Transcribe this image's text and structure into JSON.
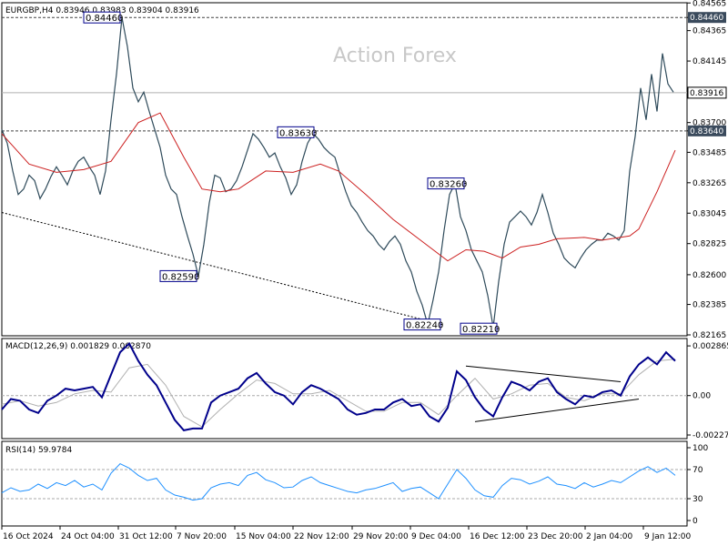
{
  "header": {
    "price_title": "EURGBP,H4  0.83946 0.83983 0.83904 0.83916",
    "macd_title": "MACD(12,26,9) 0.001829 0.002870",
    "rsi_title": "RSI(14) 59.9784",
    "watermark": "Action Forex"
  },
  "chart_data": [
    {
      "type": "line",
      "panel": "price",
      "ylim": [
        0.82165,
        0.8456
      ],
      "y_ticks": [
        "0.84565",
        "0.84460",
        "0.84365",
        "0.84145",
        "0.83916",
        "0.83700",
        "0.83640",
        "0.83485",
        "0.83265",
        "0.83045",
        "0.82825",
        "0.82600",
        "0.82385",
        "0.82165"
      ],
      "current_price": "0.83916",
      "series": [
        {
          "kind": "close",
          "x": [
            0,
            6,
            12,
            18,
            24,
            30,
            36,
            42,
            48,
            54,
            60,
            66,
            72,
            78,
            84,
            90,
            96,
            102,
            108,
            114,
            120,
            126,
            132,
            138,
            144,
            150,
            156,
            162,
            168,
            174,
            180,
            186,
            192,
            198,
            204,
            210,
            216,
            222,
            228,
            234,
            240,
            246,
            252,
            258,
            264,
            270,
            276,
            282,
            288,
            294,
            300,
            306,
            312,
            318,
            324,
            330,
            336,
            342,
            348,
            354,
            360,
            366,
            372,
            378,
            384,
            390,
            396,
            402,
            408,
            414,
            420,
            426,
            432,
            438,
            444,
            450,
            456,
            462,
            468,
            474,
            480,
            486,
            492,
            498,
            504,
            510,
            516,
            522,
            528,
            534,
            540,
            546,
            552,
            558,
            564,
            570,
            576,
            582,
            588,
            594,
            600,
            606,
            612,
            618,
            624,
            630,
            636,
            642,
            648,
            654,
            660,
            666,
            672,
            678,
            684,
            690,
            696,
            702,
            708,
            714,
            720,
            726,
            732,
            738
          ],
          "values": [
            0.8365,
            0.8355,
            0.8335,
            0.8318,
            0.8322,
            0.8332,
            0.8328,
            0.8315,
            0.8322,
            0.8331,
            0.8338,
            0.8332,
            0.8325,
            0.8335,
            0.8342,
            0.8345,
            0.8338,
            0.8332,
            0.8318,
            0.8335,
            0.8372,
            0.8405,
            0.8446,
            0.8425,
            0.8395,
            0.8385,
            0.8392,
            0.8378,
            0.8365,
            0.8352,
            0.8332,
            0.8322,
            0.8318,
            0.8302,
            0.8288,
            0.8275,
            0.8259,
            0.8282,
            0.8312,
            0.8332,
            0.833,
            0.832,
            0.8322,
            0.8328,
            0.8338,
            0.835,
            0.8362,
            0.8358,
            0.8352,
            0.8345,
            0.8348,
            0.8338,
            0.833,
            0.8318,
            0.8325,
            0.8342,
            0.8355,
            0.8362,
            0.8358,
            0.8352,
            0.8348,
            0.8345,
            0.8332,
            0.832,
            0.831,
            0.8305,
            0.8298,
            0.8292,
            0.8288,
            0.8282,
            0.8278,
            0.8284,
            0.8288,
            0.8282,
            0.827,
            0.8262,
            0.8248,
            0.8238,
            0.8224,
            0.8242,
            0.8262,
            0.8292,
            0.8318,
            0.8326,
            0.8302,
            0.8292,
            0.8278,
            0.827,
            0.8262,
            0.8245,
            0.8222,
            0.8255,
            0.8282,
            0.8298,
            0.8302,
            0.8306,
            0.8302,
            0.8296,
            0.8305,
            0.8318,
            0.8305,
            0.829,
            0.8282,
            0.8272,
            0.8268,
            0.8265,
            0.8272,
            0.8278,
            0.8282,
            0.8285,
            0.8285,
            0.829,
            0.8288,
            0.8285,
            0.8292,
            0.8335,
            0.836,
            0.8395,
            0.8372,
            0.8405,
            0.8378,
            0.842,
            0.8398,
            0.8392
          ]
        },
        {
          "kind": "ma",
          "x": [
            0,
            30,
            60,
            90,
            120,
            150,
            174,
            200,
            220,
            240,
            260,
            290,
            320,
            350,
            370,
            400,
            430,
            460,
            490,
            510,
            530,
            550,
            570,
            590,
            610,
            640,
            660,
            690,
            700,
            720,
            740
          ],
          "values": [
            0.8362,
            0.834,
            0.8334,
            0.8336,
            0.8342,
            0.837,
            0.8377,
            0.8345,
            0.8322,
            0.832,
            0.8322,
            0.8335,
            0.8334,
            0.834,
            0.8335,
            0.8318,
            0.83,
            0.8285,
            0.827,
            0.8278,
            0.8277,
            0.8272,
            0.828,
            0.8282,
            0.8286,
            0.8287,
            0.8285,
            0.8288,
            0.8293,
            0.832,
            0.835
          ]
        }
      ],
      "levels": [
        {
          "value": 0.8446,
          "label": "0.84460"
        },
        {
          "value": 0.8364,
          "label": "0.83640"
        },
        {
          "value": 0.83916,
          "label": "0.83916"
        }
      ],
      "callouts": [
        {
          "label": "0.84460",
          "x": 132,
          "value": 0.8446
        },
        {
          "label": "0.83630",
          "x": 345,
          "value": 0.8363
        },
        {
          "label": "0.82590",
          "x": 216,
          "value": 0.8259
        },
        {
          "label": "0.83260",
          "x": 510,
          "value": 0.8326
        },
        {
          "label": "0.82240",
          "x": 484,
          "value": 0.8224
        },
        {
          "label": "0.82210",
          "x": 546,
          "value": 0.8221
        }
      ],
      "trendline": {
        "x": [
          0,
          484
        ],
        "values": [
          0.8305,
          0.8224
        ]
      }
    },
    {
      "type": "line",
      "panel": "macd",
      "ylim": [
        -0.00227,
        0.00287
      ],
      "y_ticks": [
        "0.002865",
        "0.00",
        "-0.002271"
      ],
      "series": [
        {
          "kind": "main",
          "x": [
            0,
            10,
            20,
            30,
            40,
            50,
            60,
            70,
            80,
            90,
            100,
            110,
            120,
            130,
            140,
            150,
            160,
            170,
            180,
            190,
            200,
            210,
            220,
            230,
            240,
            250,
            260,
            270,
            280,
            290,
            300,
            310,
            320,
            330,
            340,
            350,
            360,
            370,
            380,
            390,
            400,
            410,
            420,
            430,
            440,
            450,
            460,
            470,
            480,
            490,
            500,
            510,
            520,
            530,
            540,
            550,
            560,
            570,
            580,
            590,
            600,
            610,
            620,
            630,
            640,
            650,
            660,
            670,
            680,
            690,
            700,
            710,
            720,
            730,
            740
          ],
          "values": [
            -0.0008,
            -0.0002,
            -0.0003,
            -0.0008,
            -0.001,
            -0.0003,
            0.0,
            0.0004,
            0.0003,
            0.0004,
            0.0005,
            -0.0001,
            0.0012,
            0.0025,
            0.003,
            0.002,
            0.0012,
            0.0006,
            -0.0004,
            -0.0014,
            -0.002,
            -0.0019,
            -0.0019,
            -0.0004,
            0.0,
            0.0002,
            0.0004,
            0.001,
            0.0013,
            0.0007,
            0.0002,
            0.0,
            -0.0005,
            0.0002,
            0.0006,
            0.0004,
            0.0001,
            -0.0002,
            -0.0008,
            -0.0011,
            -0.001,
            -0.0008,
            -0.0008,
            -0.0004,
            -0.0002,
            -0.0006,
            -0.0005,
            -0.0012,
            -0.0015,
            -0.0007,
            0.0014,
            0.0009,
            -0.0001,
            -0.0008,
            -0.0012,
            -0.0001,
            0.0008,
            0.0006,
            0.0003,
            0.0008,
            0.001,
            0.0002,
            -0.0002,
            -0.0005,
            0.0,
            -0.0001,
            0.0002,
            0.0003,
            0.0,
            0.0011,
            0.0018,
            0.0022,
            0.0018,
            0.0025,
            0.002
          ]
        },
        {
          "kind": "signal",
          "x": [
            0,
            20,
            40,
            60,
            80,
            100,
            120,
            140,
            160,
            180,
            200,
            220,
            240,
            260,
            280,
            300,
            320,
            340,
            360,
            380,
            400,
            420,
            440,
            460,
            480,
            500,
            520,
            540,
            560,
            580,
            600,
            620,
            640,
            660,
            680,
            700,
            720,
            740
          ],
          "values": [
            -0.0005,
            -0.0003,
            -0.0006,
            -0.0004,
            0.0001,
            0.0003,
            0.0002,
            0.0016,
            0.0018,
            0.0006,
            -0.0012,
            -0.0018,
            -0.0008,
            0.0001,
            0.0009,
            0.0007,
            0.0001,
            0.0001,
            0.0003,
            -0.0003,
            -0.0009,
            -0.0009,
            -0.0004,
            -0.0004,
            -0.0011,
            0.0,
            0.001,
            -0.0002,
            0.0001,
            0.0006,
            0.0007,
            -0.0001,
            -0.0003,
            0.0001,
            0.0001,
            0.0012,
            0.002,
            0.0021
          ]
        }
      ],
      "triangle": {
        "upper": {
          "x": [
            510,
            680
          ],
          "values": [
            0.0017,
            0.0008
          ]
        },
        "lower": {
          "x": [
            520,
            700
          ],
          "values": [
            -0.0015,
            -0.0002
          ]
        }
      }
    },
    {
      "type": "line",
      "panel": "rsi",
      "ylim": [
        0,
        100
      ],
      "y_ticks": [
        "100",
        "70",
        "30",
        "0"
      ],
      "levels": [
        70,
        30
      ],
      "series": [
        {
          "kind": "rsi",
          "x": [
            0,
            10,
            20,
            30,
            40,
            50,
            60,
            70,
            80,
            90,
            100,
            110,
            120,
            130,
            140,
            150,
            160,
            170,
            180,
            190,
            200,
            210,
            220,
            230,
            240,
            250,
            260,
            270,
            280,
            290,
            300,
            310,
            320,
            330,
            340,
            350,
            360,
            370,
            380,
            390,
            400,
            410,
            420,
            430,
            440,
            450,
            460,
            470,
            480,
            490,
            500,
            510,
            520,
            530,
            540,
            550,
            560,
            570,
            580,
            590,
            600,
            610,
            620,
            630,
            640,
            650,
            660,
            670,
            680,
            690,
            700,
            710,
            720,
            730,
            740
          ],
          "values": [
            38,
            45,
            40,
            42,
            50,
            44,
            52,
            48,
            55,
            46,
            50,
            42,
            65,
            78,
            72,
            62,
            55,
            58,
            42,
            35,
            32,
            28,
            30,
            45,
            50,
            52,
            48,
            62,
            66,
            56,
            52,
            45,
            46,
            55,
            60,
            52,
            48,
            44,
            40,
            38,
            42,
            44,
            48,
            52,
            40,
            44,
            46,
            38,
            30,
            50,
            70,
            58,
            42,
            34,
            32,
            48,
            58,
            56,
            50,
            54,
            60,
            50,
            48,
            44,
            52,
            46,
            50,
            55,
            52,
            60,
            68,
            74,
            66,
            72,
            62
          ]
        }
      ]
    }
  ],
  "x_axis": {
    "tick_labels": [
      "16 Oct 2024",
      "24 Oct 04:00",
      "31 Oct 12:00",
      "7 Nov 20:00",
      "15 Nov 04:00",
      "22 Nov 12:00",
      "29 Nov 20:00",
      "9 Dec 04:00",
      "16 Dec 12:00",
      "23 Dec 20:00",
      "2 Jan 04:00",
      "9 Jan 12:00"
    ],
    "tick_positions": [
      2,
      66,
      130,
      193,
      258,
      322,
      387,
      451,
      515,
      579,
      643,
      707
    ]
  },
  "colors": {
    "price_line": "#2e4a5a",
    "ma_line": "#cc1f1f",
    "macd_main": "#00008b",
    "macd_signal": "#b0b0b0",
    "rsi_line": "#1e90ff",
    "tag_bg": "#3a4a5c",
    "callout_border": "#00008b"
  }
}
